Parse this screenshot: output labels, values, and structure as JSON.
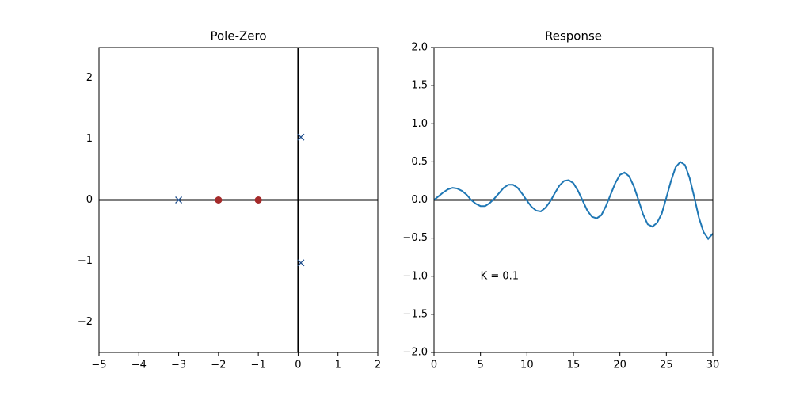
{
  "chart_data": [
    {
      "type": "scatter",
      "title": "Pole-Zero",
      "xlim": [
        -5,
        2
      ],
      "ylim": [
        -2.5,
        2.5
      ],
      "xticks": [
        {
          "value": -5,
          "label": "−5"
        },
        {
          "value": -4,
          "label": "−4"
        },
        {
          "value": -3,
          "label": "−3"
        },
        {
          "value": -2,
          "label": "−2"
        },
        {
          "value": -1,
          "label": "−1"
        },
        0,
        1,
        2
      ],
      "yticks": [
        {
          "value": -2,
          "label": "−2"
        },
        {
          "value": -1,
          "label": "−1"
        },
        0,
        1,
        2
      ],
      "zero_lines": true,
      "series": [
        {
          "marker": "x",
          "color": "#1f4e8c",
          "x": [
            -3,
            0.07,
            0.07
          ],
          "values": [
            0,
            1.03,
            -1.03
          ]
        },
        {
          "marker": "o",
          "color": "#a52a2a",
          "x": [
            -2,
            -1
          ],
          "values": [
            0,
            0
          ]
        }
      ]
    },
    {
      "type": "line",
      "title": "Response",
      "xlim": [
        0,
        30
      ],
      "ylim": [
        -2,
        2
      ],
      "xticks": [
        0,
        5,
        10,
        15,
        20,
        25,
        30
      ],
      "yticks": [
        {
          "value": -2,
          "label": "−2.0"
        },
        {
          "value": -1.5,
          "label": "−1.5"
        },
        {
          "value": -1,
          "label": "−1.0"
        },
        {
          "value": -0.5,
          "label": "−0.5"
        },
        {
          "value": 0,
          "label": "0.0"
        },
        0.5,
        {
          "value": 1,
          "label": "1.0"
        },
        1.5,
        {
          "value": 2,
          "label": "2.0"
        }
      ],
      "zero_lines": "y",
      "annotations": [
        {
          "text": "K = 0.1",
          "x": 5,
          "y": -1
        }
      ],
      "x": [
        0,
        0.5,
        1,
        1.5,
        2,
        2.5,
        3,
        3.5,
        4,
        4.5,
        5,
        5.5,
        6,
        6.5,
        7,
        7.5,
        8,
        8.5,
        9,
        9.5,
        10,
        10.5,
        11,
        11.5,
        12,
        12.5,
        13,
        13.5,
        14,
        14.5,
        15,
        15.5,
        16,
        16.5,
        17,
        17.5,
        18,
        18.5,
        19,
        19.5,
        20,
        20.5,
        21,
        21.5,
        22,
        22.5,
        23,
        23.5,
        24,
        24.5,
        25,
        25.5,
        26,
        26.5,
        27,
        27.5,
        28,
        28.5,
        29,
        29.5,
        30
      ],
      "series": [
        {
          "color": "#1f77b4",
          "values": [
            0,
            0.05,
            0.1,
            0.14,
            0.16,
            0.15,
            0.12,
            0.07,
            0,
            -0.05,
            -0.08,
            -0.08,
            -0.04,
            0.02,
            0.09,
            0.16,
            0.2,
            0.2,
            0.16,
            0.08,
            -0.01,
            -0.09,
            -0.14,
            -0.15,
            -0.1,
            -0.02,
            0.09,
            0.19,
            0.25,
            0.26,
            0.22,
            0.12,
            -0.01,
            -0.14,
            -0.22,
            -0.24,
            -0.2,
            -0.08,
            0.07,
            0.22,
            0.33,
            0.36,
            0.31,
            0.18,
            0,
            -0.19,
            -0.32,
            -0.35,
            -0.3,
            -0.18,
            0.03,
            0.25,
            0.43,
            0.5,
            0.46,
            0.29,
            0.04,
            -0.23,
            -0.42,
            -0.51,
            -0.44
          ]
        }
      ]
    }
  ]
}
